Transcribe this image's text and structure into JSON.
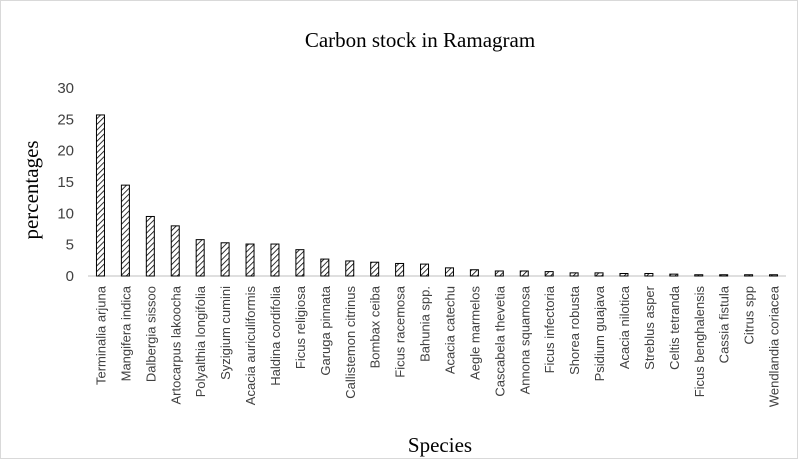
{
  "chart_data": {
    "type": "bar",
    "title": "Carbon stock in Ramagram",
    "x_label": "Species",
    "y_label": "percentages",
    "categories": [
      "Terminalia arjuna",
      "Mangifera indica",
      "Dalbergia sissoo",
      "Artocarpus lakoocha",
      "Polyalthia longifolia",
      "Syzigium cumini",
      "Acacia auriculiformis",
      "Haldina cordifolia",
      "Ficus religiosa",
      "Garuga pinnata",
      "Callistemon citrinus",
      "Bombax ceiba",
      "Ficus racemosa",
      "Bahunia spp.",
      "Acacia catechu",
      "Aegle marmelos",
      "Cascabela thevetia",
      "Annona squamosa",
      "Ficus infectoria",
      "Shorea robusta",
      "Psidium guajava",
      "Acacia nilotica",
      "Streblus asper",
      "Celtis tetranda",
      "Ficus benghalensis",
      "Cassia fistula",
      "Citrus spp",
      "Wendlandia coriacea"
    ],
    "values": [
      25.7,
      14.5,
      9.5,
      8.0,
      5.8,
      5.3,
      5.1,
      5.1,
      4.2,
      2.7,
      2.4,
      2.2,
      2.0,
      1.9,
      1.3,
      1.0,
      0.8,
      0.8,
      0.7,
      0.5,
      0.5,
      0.4,
      0.4,
      0.3,
      0.2,
      0.2,
      0.2,
      0.2
    ],
    "color": "#000000",
    "ylim": [
      0,
      30
    ],
    "yticks": [
      0,
      5,
      10,
      15,
      20,
      25,
      30
    ],
    "grid": false
  }
}
